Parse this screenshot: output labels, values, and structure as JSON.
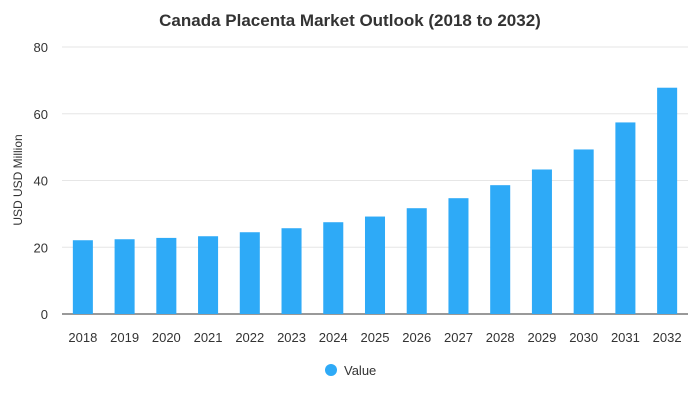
{
  "chart_data": {
    "type": "bar",
    "title": "Canada Placenta Market Outlook (2018 to 2032)",
    "xlabel": "",
    "ylabel": "USD USD Million",
    "categories": [
      "2018",
      "2019",
      "2020",
      "2021",
      "2022",
      "2023",
      "2024",
      "2025",
      "2026",
      "2027",
      "2028",
      "2029",
      "2030",
      "2031",
      "2032"
    ],
    "series": [
      {
        "name": "Value",
        "values": [
          22.1,
          22.4,
          22.8,
          23.3,
          24.5,
          25.7,
          27.5,
          29.2,
          31.7,
          34.7,
          38.6,
          43.3,
          49.3,
          57.4,
          67.8
        ]
      }
    ],
    "ylim": [
      0,
      80
    ],
    "yticks": [
      0,
      20,
      40,
      60,
      80
    ],
    "grid": true,
    "legend_position": "bottom",
    "colors": {
      "bar": "#2eaaf7",
      "grid": "#e6e6e6",
      "text": "#333333"
    }
  }
}
